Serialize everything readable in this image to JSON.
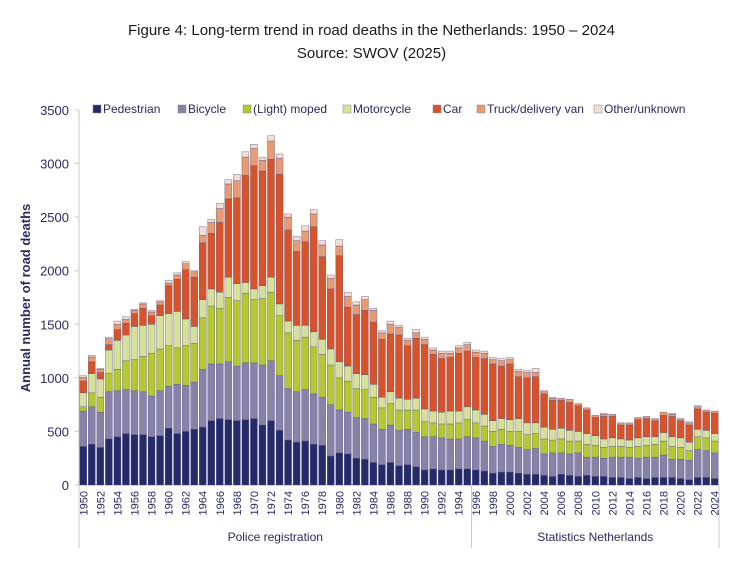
{
  "chart_data": {
    "type": "bar",
    "stacked": true,
    "title": "Figure 4: Long-term trend in road deaths in the Netherlands: 1950 – 2024",
    "subtitle": "Source: SWOV (2025)",
    "xlabel": "",
    "ylabel": "Annual number of road deaths",
    "ylim": [
      0,
      3500
    ],
    "yticks": [
      0,
      500,
      1000,
      1500,
      2000,
      2500,
      3000,
      3500
    ],
    "grid": false,
    "legend_position": "top",
    "x_groups": [
      {
        "label": "Police registration",
        "from": 1950,
        "to": 1995
      },
      {
        "label": "Statistics Netherlands",
        "from": 1996,
        "to": 2024
      }
    ],
    "categories": [
      1950,
      1951,
      1952,
      1953,
      1954,
      1955,
      1956,
      1957,
      1958,
      1959,
      1960,
      1961,
      1962,
      1963,
      1964,
      1965,
      1966,
      1967,
      1968,
      1969,
      1970,
      1971,
      1972,
      1973,
      1974,
      1975,
      1976,
      1977,
      1978,
      1979,
      1980,
      1981,
      1982,
      1983,
      1984,
      1985,
      1986,
      1987,
      1988,
      1989,
      1990,
      1991,
      1992,
      1993,
      1994,
      1995,
      1996,
      1997,
      1998,
      1999,
      2000,
      2001,
      2002,
      2003,
      2004,
      2005,
      2006,
      2007,
      2008,
      2009,
      2010,
      2011,
      2012,
      2013,
      2014,
      2015,
      2016,
      2017,
      2018,
      2019,
      2020,
      2021,
      2022,
      2023,
      2024
    ],
    "tick_labels": [
      "1950",
      "1952",
      "1954",
      "1956",
      "1958",
      "1960",
      "1962",
      "1964",
      "1966",
      "1968",
      "1970",
      "1972",
      "1974",
      "1976",
      "1978",
      "1980",
      "1982",
      "1984",
      "1986",
      "1988",
      "1990",
      "1992",
      "1994",
      "1996",
      "1998",
      "2000",
      "2002",
      "2004",
      "2006",
      "2008",
      "2010",
      "2012",
      "2014",
      "2016",
      "2018",
      "2020",
      "2022",
      "2024"
    ],
    "series": [
      {
        "name": "Pedestrian",
        "color": "#252a6a",
        "values": [
          360,
          380,
          350,
          430,
          450,
          480,
          470,
          470,
          450,
          460,
          530,
          480,
          500,
          520,
          540,
          600,
          620,
          610,
          600,
          610,
          620,
          560,
          600,
          510,
          420,
          400,
          410,
          380,
          370,
          270,
          300,
          290,
          250,
          240,
          210,
          190,
          210,
          180,
          190,
          170,
          140,
          150,
          140,
          140,
          150,
          150,
          140,
          130,
          110,
          120,
          120,
          110,
          100,
          100,
          90,
          80,
          100,
          90,
          80,
          90,
          80,
          80,
          70,
          70,
          60,
          70,
          60,
          70,
          70,
          70,
          60,
          50,
          70,
          70,
          60
        ]
      },
      {
        "name": "Bicycle",
        "color": "#8882a8",
        "values": [
          330,
          350,
          330,
          440,
          430,
          410,
          410,
          400,
          380,
          420,
          390,
          460,
          430,
          440,
          540,
          530,
          510,
          540,
          510,
          530,
          520,
          560,
          560,
          510,
          480,
          470,
          480,
          470,
          450,
          480,
          400,
          390,
          380,
          380,
          360,
          330,
          350,
          330,
          330,
          320,
          310,
          300,
          300,
          290,
          280,
          300,
          300,
          280,
          250,
          260,
          250,
          240,
          230,
          240,
          200,
          220,
          200,
          200,
          220,
          170,
          180,
          170,
          190,
          190,
          200,
          180,
          200,
          190,
          210,
          170,
          180,
          180,
          260,
          250,
          240
        ]
      },
      {
        "name": "(Light) moped",
        "color": "#b5c832",
        "values": [
          40,
          130,
          140,
          170,
          200,
          270,
          290,
          330,
          400,
          390,
          380,
          340,
          370,
          360,
          480,
          540,
          520,
          600,
          610,
          650,
          590,
          620,
          640,
          560,
          520,
          480,
          490,
          440,
          400,
          370,
          300,
          290,
          270,
          270,
          250,
          200,
          200,
          190,
          180,
          210,
          140,
          130,
          130,
          140,
          150,
          160,
          140,
          140,
          140,
          140,
          130,
          150,
          140,
          140,
          140,
          120,
          130,
          120,
          110,
          120,
          110,
          100,
          100,
          100,
          90,
          110,
          110,
          120,
          130,
          120,
          110,
          90,
          120,
          120,
          110
        ]
      },
      {
        "name": "Motorcycle",
        "color": "#d6e09a",
        "values": [
          130,
          180,
          170,
          220,
          270,
          240,
          310,
          290,
          270,
          310,
          300,
          340,
          250,
          160,
          170,
          160,
          150,
          190,
          160,
          100,
          100,
          120,
          140,
          110,
          110,
          140,
          110,
          140,
          140,
          150,
          150,
          140,
          140,
          140,
          120,
          100,
          110,
          110,
          100,
          110,
          120,
          110,
          110,
          120,
          110,
          120,
          120,
          110,
          100,
          100,
          110,
          120,
          110,
          100,
          110,
          100,
          100,
          100,
          90,
          100,
          90,
          80,
          80,
          70,
          70,
          80,
          80,
          70,
          80,
          90,
          90,
          80,
          70,
          70,
          70
        ]
      },
      {
        "name": "Car",
        "color": "#d9532a",
        "values": [
          110,
          110,
          60,
          50,
          100,
          110,
          120,
          160,
          80,
          100,
          260,
          300,
          460,
          460,
          530,
          520,
          650,
          730,
          800,
          1000,
          1150,
          1070,
          1100,
          1210,
          850,
          690,
          780,
          980,
          770,
          560,
          990,
          550,
          550,
          600,
          580,
          540,
          540,
          590,
          500,
          560,
          600,
          530,
          500,
          500,
          540,
          520,
          490,
          520,
          530,
          490,
          520,
          390,
          420,
          430,
          310,
          270,
          260,
          260,
          240,
          220,
          170,
          210,
          200,
          130,
          140,
          170,
          170,
          150,
          160,
          190,
          160,
          160,
          190,
          170,
          190
        ]
      },
      {
        "name": "Truck/delivery van",
        "color": "#e89a73",
        "values": [
          35,
          45,
          30,
          55,
          50,
          35,
          30,
          40,
          35,
          30,
          25,
          40,
          55,
          50,
          70,
          100,
          130,
          140,
          160,
          170,
          160,
          100,
          170,
          150,
          120,
          100,
          100,
          120,
          110,
          100,
          90,
          100,
          90,
          100,
          110,
          60,
          90,
          70,
          50,
          50,
          50,
          40,
          50,
          40,
          50,
          60,
          50,
          50,
          40,
          50,
          40,
          50,
          50,
          40,
          20,
          20,
          20,
          30,
          20,
          20,
          20,
          20,
          20,
          20,
          20,
          20,
          20,
          20,
          30,
          20,
          20,
          20,
          20,
          20,
          20
        ]
      },
      {
        "name": "Other/unknown",
        "color": "#f2dcd4",
        "values": [
          15,
          15,
          10,
          15,
          30,
          25,
          10,
          10,
          15,
          10,
          25,
          20,
          20,
          10,
          80,
          30,
          50,
          40,
          60,
          50,
          40,
          30,
          50,
          40,
          30,
          40,
          50,
          40,
          40,
          30,
          60,
          40,
          30,
          30,
          20,
          20,
          30,
          20,
          20,
          30,
          20,
          20,
          20,
          20,
          20,
          20,
          20,
          20,
          20,
          20,
          20,
          20,
          20,
          40,
          10,
          10,
          0,
          0,
          0,
          0,
          0,
          10,
          0,
          0,
          0,
          0,
          0,
          0,
          0,
          10,
          0,
          10,
          10,
          0,
          0
        ]
      }
    ]
  }
}
